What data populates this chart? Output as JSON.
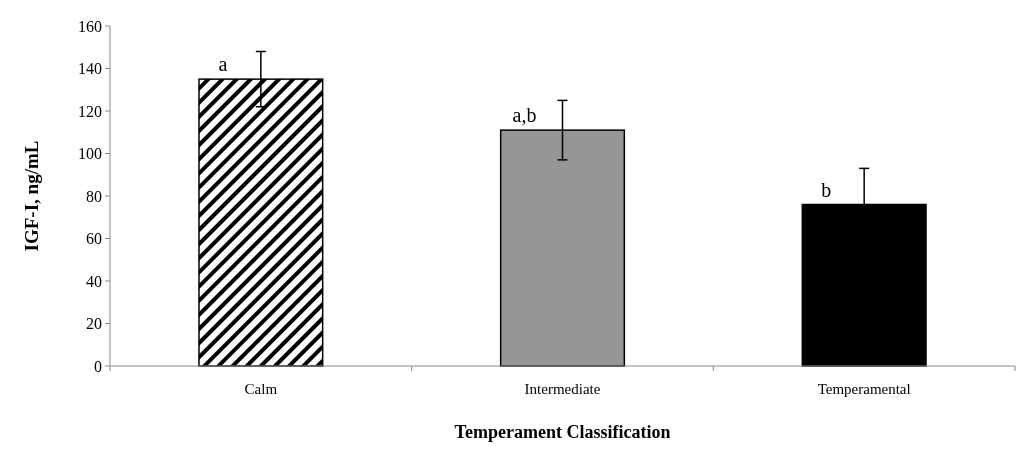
{
  "chart_data": {
    "type": "bar",
    "xlabel": "Temperament Classification",
    "ylabel": "IGF-I, ng/mL",
    "categories": [
      "Calm",
      "Intermediate",
      "Temperamental"
    ],
    "values": [
      135,
      111,
      76
    ],
    "colors": [
      "#000000",
      "#969696",
      "#000000"
    ],
    "errors": [
      [
        122,
        148
      ],
      [
        97,
        125
      ],
      [
        76,
        93
      ]
    ],
    "ylim": [
      0,
      160
    ],
    "yticks": [
      0,
      20,
      40,
      60,
      80,
      100,
      120,
      140,
      160
    ],
    "grid": false,
    "annotations": [
      {
        "text": "a",
        "x": "Calm",
        "y": 135
      },
      {
        "text": "a,b",
        "x": "Intermediate",
        "y": 111
      },
      {
        "text": "b",
        "x": "Temperamental",
        "y": 76
      }
    ]
  }
}
